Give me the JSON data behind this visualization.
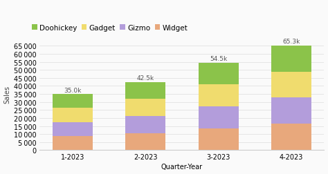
{
  "categories": [
    "1-2023",
    "2-2023",
    "3-2023",
    "4-2023"
  ],
  "series": {
    "Widget": [
      8750,
      10625,
      13625,
      16325
    ],
    "Gizmo": [
      8750,
      10625,
      13625,
      16325
    ],
    "Gadget": [
      8750,
      10625,
      13625,
      16325
    ],
    "Doohickey": [
      8750,
      10625,
      13625,
      16325
    ]
  },
  "totals": [
    "35.0k",
    "42.5k",
    "54.5k",
    "65.3k"
  ],
  "total_values": [
    35000,
    42500,
    54500,
    65300
  ],
  "colors": {
    "Widget": "#E8A87C",
    "Gizmo": "#B39DDB",
    "Gadget": "#F0DC6E",
    "Doohickey": "#8BC34A"
  },
  "legend_order": [
    "Doohickey",
    "Gadget",
    "Gizmo",
    "Widget"
  ],
  "xlabel": "Quarter-Year",
  "ylabel": "Sales",
  "ylim": [
    0,
    70000
  ],
  "yticks": [
    0,
    5000,
    10000,
    15000,
    20000,
    25000,
    30000,
    35000,
    40000,
    45000,
    50000,
    55000,
    60000,
    65000
  ],
  "bg_color": "#FAFAFA",
  "bar_width": 0.55,
  "annotation_fontsize": 6.5,
  "axis_fontsize": 7,
  "legend_fontsize": 7.5,
  "ylabel_fontsize": 7
}
